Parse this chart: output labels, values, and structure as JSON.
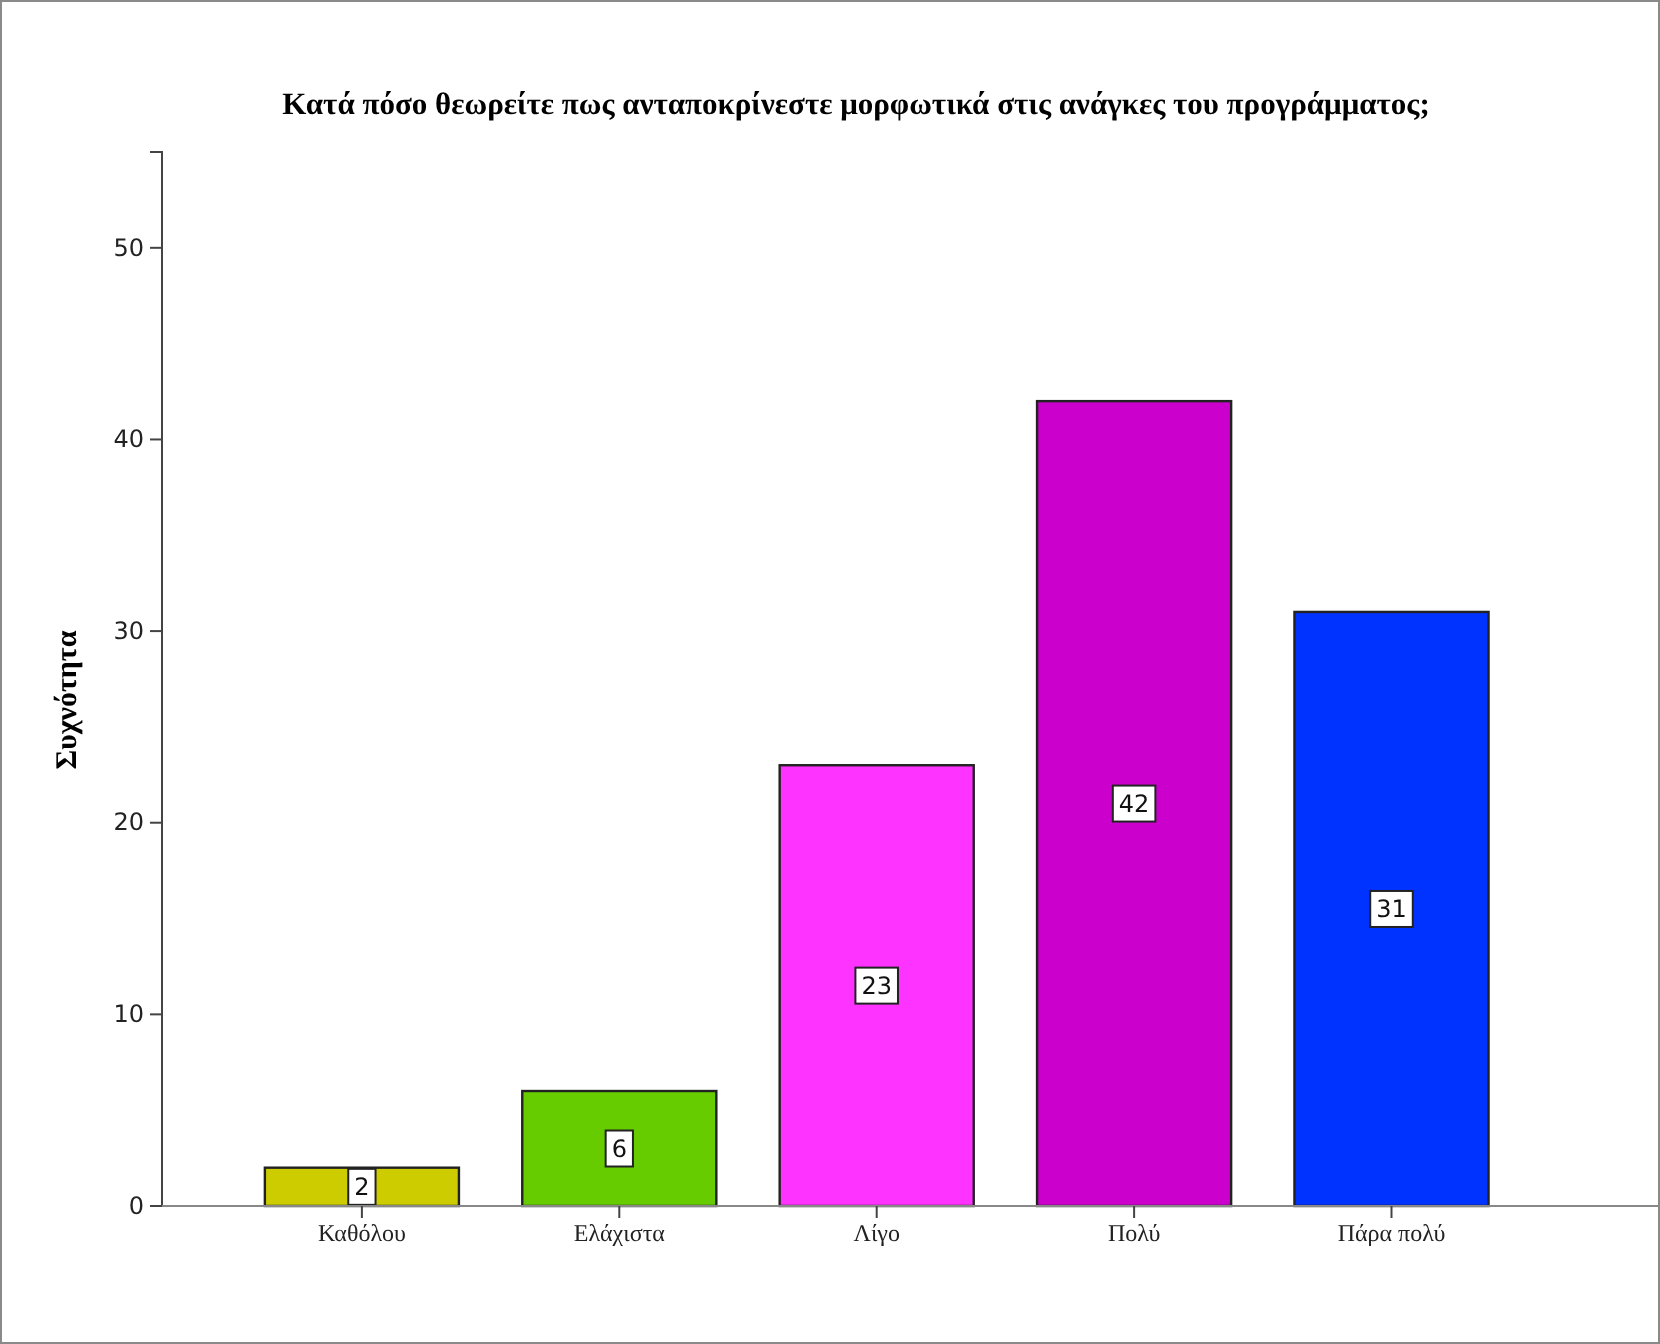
{
  "chart_data": {
    "type": "bar",
    "title": "Κατά πόσο θεωρείτε πως ανταποκρίνεστε μορφωτικά στις ανάγκες του προγράμματος;",
    "ylabel": "Συχνότητα",
    "categories": [
      "Καθόλου",
      "Ελάχιστα",
      "Λίγο",
      "Πολύ",
      "Πάρα πολύ"
    ],
    "values": [
      2,
      6,
      23,
      42,
      31
    ],
    "colors": [
      "#cccc00",
      "#66cc00",
      "#ff33ff",
      "#cc00cc",
      "#0033ff"
    ],
    "ylim": [
      0,
      55
    ],
    "yticks": [
      0,
      10,
      20,
      30,
      40,
      50
    ],
    "grid": false,
    "data_labels": true
  }
}
